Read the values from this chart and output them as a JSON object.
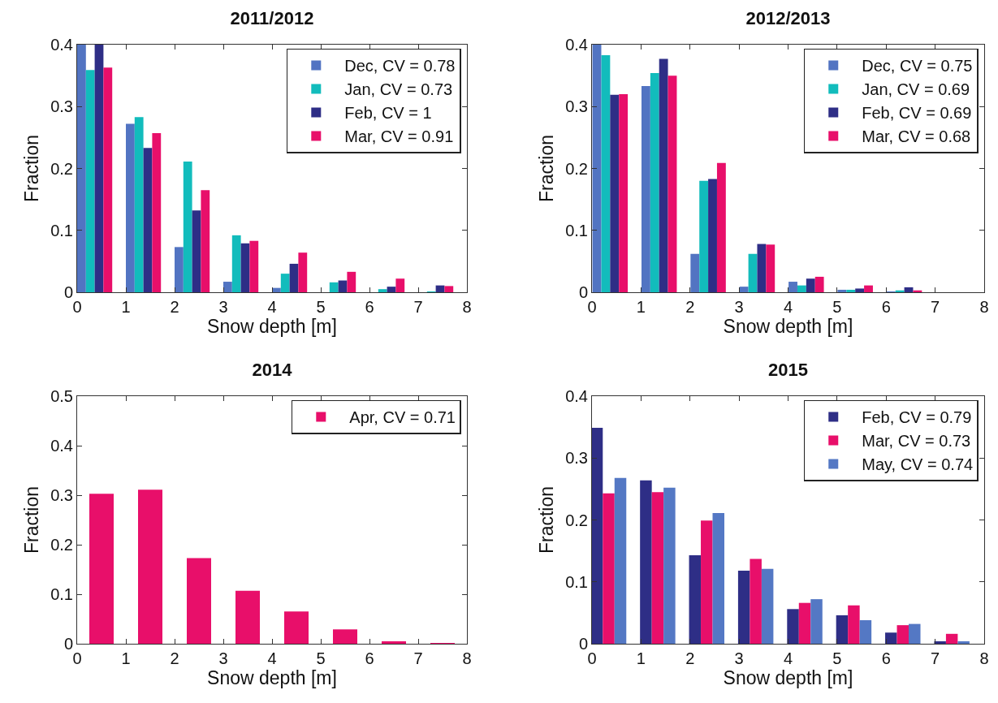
{
  "chart_data": [
    {
      "type": "bar",
      "title": "2011/2012",
      "xlabel": "Snow depth [m]",
      "ylabel": "Fraction",
      "x": [
        0.36,
        1.36,
        2.36,
        3.36,
        4.36,
        5.36,
        6.36,
        7.36
      ],
      "xlim": [
        0,
        8
      ],
      "xticks": [
        0,
        1,
        2,
        3,
        4,
        5,
        6,
        7,
        8
      ],
      "ylim": [
        0,
        0.4
      ],
      "yticks": [
        0,
        0.1,
        0.2,
        0.3,
        0.4
      ],
      "legend": "top right",
      "series": [
        {
          "name": "Dec, CV = 0.78",
          "color": "#5274c2",
          "values": [
            0.4,
            0.272,
            0.073,
            0.017,
            0.007,
            0,
            0,
            0
          ]
        },
        {
          "name": "Jan, CV = 0.73",
          "color": "#12bcbc",
          "values": [
            0.359,
            0.283,
            0.211,
            0.092,
            0.03,
            0.016,
            0.005,
            0.001
          ]
        },
        {
          "name": "Feb, CV = 1",
          "color": "#2e2e86",
          "values": [
            0.4,
            0.233,
            0.132,
            0.079,
            0.046,
            0.019,
            0.009,
            0.011
          ]
        },
        {
          "name": "Mar, CV = 0.91",
          "color": "#e80f6a",
          "values": [
            0.363,
            0.257,
            0.165,
            0.083,
            0.064,
            0.033,
            0.022,
            0.01
          ]
        }
      ]
    },
    {
      "type": "bar",
      "title": "2012/2013",
      "xlabel": "Snow depth [m]",
      "ylabel": "Fraction",
      "x": [
        0.37,
        1.37,
        2.37,
        3.37,
        4.37,
        5.37,
        6.37,
        7.37
      ],
      "xlim": [
        0,
        8
      ],
      "xticks": [
        0,
        1,
        2,
        3,
        4,
        5,
        6,
        7,
        8
      ],
      "ylim": [
        0,
        0.4
      ],
      "yticks": [
        0,
        0.1,
        0.2,
        0.3,
        0.4
      ],
      "legend": "top right",
      "series": [
        {
          "name": "Dec, CV = 0.75",
          "color": "#5274c2",
          "values": [
            0.4,
            0.333,
            0.062,
            0.009,
            0.017,
            0.004,
            0.001,
            0
          ]
        },
        {
          "name": "Jan, CV = 0.69",
          "color": "#12bcbc",
          "values": [
            0.383,
            0.354,
            0.18,
            0.062,
            0.011,
            0.004,
            0.003,
            0
          ]
        },
        {
          "name": "Feb, CV = 0.69",
          "color": "#2e2e86",
          "values": [
            0.319,
            0.377,
            0.183,
            0.078,
            0.022,
            0.006,
            0.008,
            0
          ]
        },
        {
          "name": "Mar, CV = 0.68",
          "color": "#e80f6a",
          "values": [
            0.32,
            0.35,
            0.209,
            0.077,
            0.025,
            0.011,
            0.003,
            0
          ]
        }
      ]
    },
    {
      "type": "bar",
      "title": "2014",
      "xlabel": "Snow depth [m]",
      "ylabel": "Fraction",
      "x": [
        0.5,
        1.5,
        2.5,
        3.5,
        4.5,
        5.5,
        6.5,
        7.5
      ],
      "xlim": [
        0,
        8
      ],
      "xticks": [
        0,
        1,
        2,
        3,
        4,
        5,
        6,
        7,
        8
      ],
      "ylim": [
        0,
        0.5
      ],
      "yticks": [
        0,
        0.1,
        0.2,
        0.3,
        0.4,
        0.5
      ],
      "legend": "top right",
      "series": [
        {
          "name": "Apr, CV = 0.71",
          "color": "#e80f6a",
          "values": [
            0.303,
            0.311,
            0.173,
            0.107,
            0.065,
            0.029,
            0.005,
            0.001
          ]
        }
      ]
    },
    {
      "type": "bar",
      "title": "2015",
      "xlabel": "Snow depth [m]",
      "ylabel": "Fraction",
      "x": [
        0.34,
        1.34,
        2.34,
        3.34,
        4.34,
        5.34,
        6.34,
        7.34
      ],
      "xlim": [
        0,
        8
      ],
      "xticks": [
        0,
        1,
        2,
        3,
        4,
        5,
        6,
        7,
        8
      ],
      "ylim": [
        0,
        0.4
      ],
      "yticks": [
        0,
        0.1,
        0.2,
        0.3,
        0.4
      ],
      "legend": "top right",
      "series": [
        {
          "name": "Feb, CV = 0.79",
          "color": "#2e2e86",
          "values": [
            0.349,
            0.264,
            0.143,
            0.118,
            0.056,
            0.046,
            0.018,
            0.004
          ]
        },
        {
          "name": "Mar, CV = 0.73",
          "color": "#e80f6a",
          "values": [
            0.243,
            0.245,
            0.199,
            0.137,
            0.066,
            0.062,
            0.03,
            0.016
          ]
        },
        {
          "name": "May, CV = 0.74",
          "color": "#5478c4",
          "values": [
            0.268,
            0.252,
            0.211,
            0.121,
            0.072,
            0.038,
            0.032,
            0.004
          ]
        }
      ]
    }
  ]
}
